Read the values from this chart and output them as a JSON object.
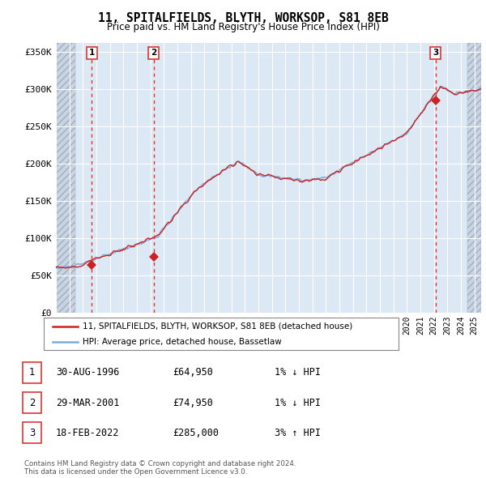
{
  "title": "11, SPITALFIELDS, BLYTH, WORKSOP, S81 8EB",
  "subtitle": "Price paid vs. HM Land Registry's House Price Index (HPI)",
  "ylabel_ticks": [
    "£0",
    "£50K",
    "£100K",
    "£150K",
    "£200K",
    "£250K",
    "£300K",
    "£350K"
  ],
  "ytick_vals": [
    0,
    50000,
    100000,
    150000,
    200000,
    250000,
    300000,
    350000
  ],
  "ylim": [
    0,
    362000
  ],
  "xlim_start": 1994.0,
  "xlim_end": 2025.5,
  "hpi_color": "#7aaddc",
  "price_color": "#cc2222",
  "background_plot": "#dde8f5",
  "background_hatch_color": "#c8d4e4",
  "grid_color": "#ffffff",
  "sale_dates": [
    1996.66,
    2001.24,
    2022.12
  ],
  "sale_prices": [
    64950,
    74950,
    285000
  ],
  "sale_labels": [
    "1",
    "2",
    "3"
  ],
  "vline_color": "#dd3333",
  "marker_color": "#cc2222",
  "legend_line1": "11, SPITALFIELDS, BLYTH, WORKSOP, S81 8EB (detached house)",
  "legend_line2": "HPI: Average price, detached house, Bassetlaw",
  "table_rows": [
    [
      "1",
      "30-AUG-1996",
      "£64,950",
      "1% ↓ HPI"
    ],
    [
      "2",
      "29-MAR-2001",
      "£74,950",
      "1% ↓ HPI"
    ],
    [
      "3",
      "18-FEB-2022",
      "£285,000",
      "3% ↑ HPI"
    ]
  ],
  "footer": "Contains HM Land Registry data © Crown copyright and database right 2024.\nThis data is licensed under the Open Government Licence v3.0.",
  "pre_hatch_end": 1995.42,
  "post_hatch_start": 2024.5
}
